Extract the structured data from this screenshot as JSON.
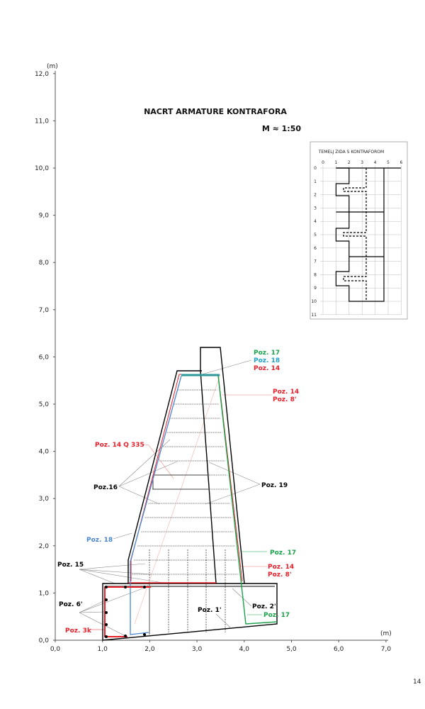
{
  "title": "NACRT ARMATURE KONTRAFORA",
  "scale": "M ≈  1:50",
  "axis_unit_y": "(m)",
  "axis_unit_x": "(m)",
  "y_ticks": [
    "0,0",
    "1,0",
    "2,0",
    "3,0",
    "4,0",
    "5,0",
    "6,0",
    "7,0",
    "8,0",
    "9,0",
    "10,0",
    "11,0",
    "12,0"
  ],
  "x_ticks": [
    "0,0",
    "1,0",
    "2,0",
    "3,0",
    "4,0",
    "5,0",
    "6,0",
    "7,0"
  ],
  "labels": {
    "top_poz17": "Poz. 17",
    "top_poz18": "Poz. 18",
    "top_poz14": "Poz. 14",
    "r_poz14": "Poz. 14",
    "r_poz8": "Poz.   8'",
    "poz14q": "Poz. 14 Q 335",
    "poz16": "Poz.16",
    "poz19": "Poz. 19",
    "poz18": "Poz. 18",
    "mid_poz17": "Poz. 17",
    "mid_poz14": "Poz. 14",
    "mid_poz8": "Poz.  8'",
    "poz15": "Poz. 15",
    "poz6": "Poz. 6'",
    "poz1": "Poz. 1'",
    "poz2": "Poz. 2'",
    "bot_poz17": "Poz. 17",
    "poz3k": "Poz. 3k"
  },
  "inset": {
    "title": "TEMELJ ZIDA S KONTRAFOROM",
    "x_ticks": [
      "0",
      "1",
      "2",
      "3",
      "4",
      "5",
      "6"
    ],
    "y_ticks": [
      "0",
      "1",
      "2",
      "3",
      "4",
      "5",
      "6",
      "7",
      "8",
      "9",
      "10",
      "11"
    ]
  },
  "page_number": "14",
  "colors": {
    "red": "#e8202a",
    "blue": "#4a86d0",
    "green": "#1aa34a",
    "teal": "#20a0c8"
  }
}
